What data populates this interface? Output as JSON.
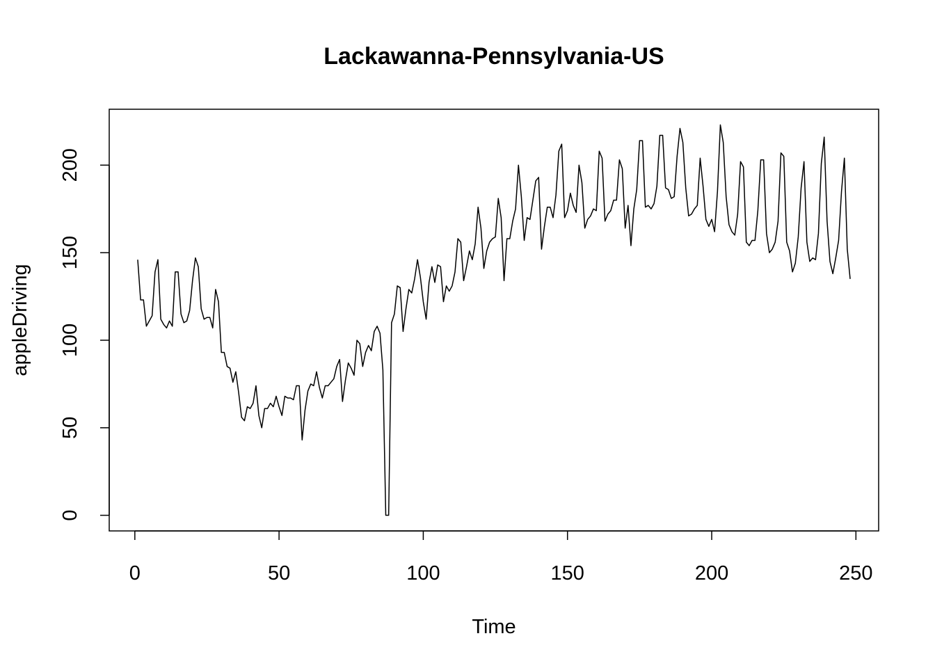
{
  "chart_data": {
    "type": "line",
    "title": "Lackawanna-Pennsylvania-US",
    "xlabel": "Time",
    "ylabel": "appleDriving",
    "x": [
      1,
      2,
      3,
      4,
      5,
      6,
      7,
      8,
      9,
      10,
      11,
      12,
      13,
      14,
      15,
      16,
      17,
      18,
      19,
      20,
      21,
      22,
      23,
      24,
      25,
      26,
      27,
      28,
      29,
      30,
      31,
      32,
      33,
      34,
      35,
      36,
      37,
      38,
      39,
      40,
      41,
      42,
      43,
      44,
      45,
      46,
      47,
      48,
      49,
      50,
      51,
      52,
      53,
      54,
      55,
      56,
      57,
      58,
      59,
      60,
      61,
      62,
      63,
      64,
      65,
      66,
      67,
      68,
      69,
      70,
      71,
      72,
      73,
      74,
      75,
      76,
      77,
      78,
      79,
      80,
      81,
      82,
      83,
      84,
      85,
      86,
      87,
      88,
      89,
      90,
      91,
      92,
      93,
      94,
      95,
      96,
      97,
      98,
      99,
      100,
      101,
      102,
      103,
      104,
      105,
      106,
      107,
      108,
      109,
      110,
      111,
      112,
      113,
      114,
      115,
      116,
      117,
      118,
      119,
      120,
      121,
      122,
      123,
      124,
      125,
      126,
      127,
      128,
      129,
      130,
      131,
      132,
      133,
      134,
      135,
      136,
      137,
      138,
      139,
      140,
      141,
      142,
      143,
      144,
      145,
      146,
      147,
      148,
      149,
      150,
      151,
      152,
      153,
      154,
      155,
      156,
      157,
      158,
      159,
      160,
      161,
      162,
      163,
      164,
      165,
      166,
      167,
      168,
      169,
      170,
      171,
      172,
      173,
      174,
      175,
      176,
      177,
      178,
      179,
      180,
      181,
      182,
      183,
      184,
      185,
      186,
      187,
      188,
      189,
      190,
      191,
      192,
      193,
      194,
      195,
      196,
      197,
      198,
      199,
      200,
      201,
      202,
      203,
      204,
      205,
      206,
      207,
      208,
      209,
      210,
      211,
      212,
      213,
      214,
      215,
      216,
      217,
      218,
      219,
      220,
      221,
      222,
      223,
      224,
      225,
      226,
      227,
      228,
      229,
      230,
      231,
      232,
      233,
      234,
      235,
      236,
      237,
      238,
      239,
      240,
      241,
      242,
      243,
      244,
      245,
      246,
      247,
      248
    ],
    "values": [
      146,
      123,
      123,
      108,
      111,
      114,
      139,
      146,
      112,
      109,
      107,
      111,
      108,
      139,
      139,
      115,
      110,
      111,
      117,
      134,
      147,
      142,
      118,
      112,
      113,
      113,
      107,
      129,
      122,
      93,
      93,
      85,
      84,
      76,
      82,
      70,
      56,
      54,
      62,
      61,
      64,
      74,
      57,
      50,
      61,
      61,
      64,
      62,
      68,
      62,
      57,
      68,
      67,
      67,
      66,
      74,
      74,
      43,
      60,
      71,
      75,
      74,
      82,
      73,
      67,
      74,
      74,
      76,
      78,
      85,
      89,
      65,
      77,
      87,
      84,
      80,
      100,
      98,
      85,
      93,
      97,
      94,
      105,
      108,
      104,
      83,
      0,
      0,
      110,
      115,
      131,
      130,
      105,
      118,
      129,
      127,
      135,
      146,
      136,
      122,
      112,
      133,
      142,
      133,
      143,
      142,
      122,
      131,
      128,
      131,
      139,
      158,
      156,
      134,
      142,
      151,
      146,
      155,
      176,
      164,
      141,
      151,
      156,
      158,
      159,
      181,
      170,
      134,
      158,
      158,
      168,
      175,
      200,
      182,
      157,
      170,
      169,
      180,
      191,
      193,
      152,
      165,
      176,
      176,
      170,
      183,
      208,
      212,
      170,
      174,
      184,
      177,
      173,
      200,
      190,
      164,
      169,
      171,
      175,
      174,
      208,
      204,
      168,
      172,
      174,
      180,
      180,
      203,
      198,
      164,
      177,
      154,
      175,
      186,
      214,
      214,
      176,
      177,
      175,
      178,
      188,
      217,
      217,
      187,
      186,
      181,
      182,
      205,
      221,
      213,
      187,
      171,
      172,
      175,
      177,
      204,
      188,
      169,
      165,
      169,
      162,
      185,
      223,
      213,
      182,
      166,
      162,
      160,
      172,
      202,
      199,
      156,
      154,
      157,
      157,
      174,
      203,
      203,
      161,
      150,
      152,
      156,
      168,
      207,
      205,
      156,
      151,
      139,
      144,
      159,
      187,
      202,
      156,
      145,
      147,
      146,
      161,
      201,
      216,
      168,
      145,
      138,
      147,
      157,
      185,
      204,
      152,
      135
    ],
    "color": "#000000",
    "xlim": [
      -8.88,
      257.88
    ],
    "ylim": [
      -8.92,
      231.92
    ],
    "xticks": [
      0,
      50,
      100,
      150,
      200,
      250
    ],
    "yticks": [
      0,
      50,
      100,
      150,
      200
    ]
  }
}
